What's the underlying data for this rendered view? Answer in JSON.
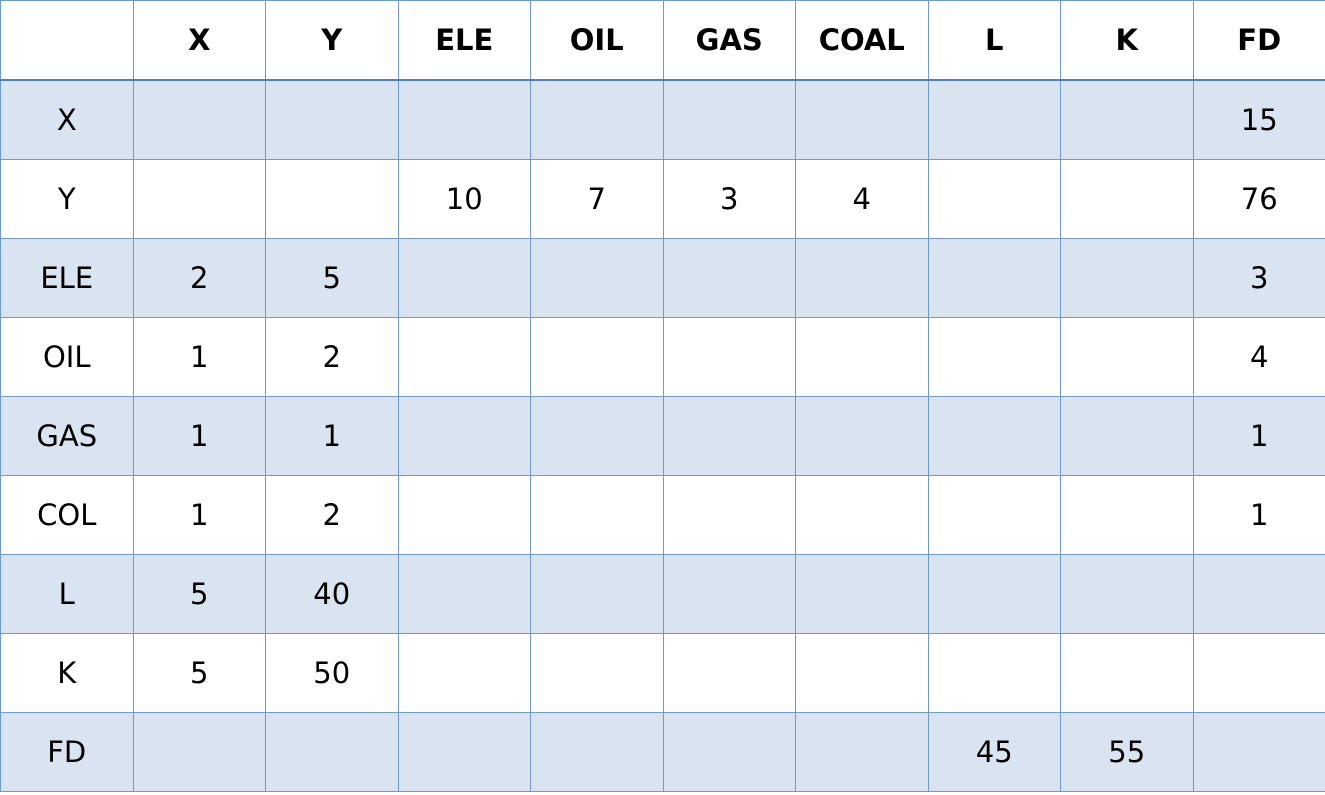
{
  "table": {
    "columns": [
      "",
      "X",
      "Y",
      "ELE",
      "OIL",
      "GAS",
      "COAL",
      "L",
      "K",
      "FD"
    ],
    "rows": [
      {
        "label": "X",
        "cells": [
          "",
          "",
          "",
          "",
          "",
          "",
          "",
          "",
          "15"
        ]
      },
      {
        "label": "Y",
        "cells": [
          "",
          "",
          "10",
          "7",
          "3",
          "4",
          "",
          "",
          "76"
        ]
      },
      {
        "label": "ELE",
        "cells": [
          "2",
          "5",
          "",
          "",
          "",
          "",
          "",
          "",
          "3"
        ]
      },
      {
        "label": "OIL",
        "cells": [
          "1",
          "2",
          "",
          "",
          "",
          "",
          "",
          "",
          "4"
        ]
      },
      {
        "label": "GAS",
        "cells": [
          "1",
          "1",
          "",
          "",
          "",
          "",
          "",
          "",
          "1"
        ]
      },
      {
        "label": "COL",
        "cells": [
          "1",
          "2",
          "",
          "",
          "",
          "",
          "",
          "",
          "1"
        ]
      },
      {
        "label": "L",
        "cells": [
          "5",
          "40",
          "",
          "",
          "",
          "",
          "",
          "",
          ""
        ]
      },
      {
        "label": "K",
        "cells": [
          "5",
          "50",
          "",
          "",
          "",
          "",
          "",
          "",
          ""
        ]
      },
      {
        "label": "FD",
        "cells": [
          "",
          "",
          "",
          "",
          "",
          "",
          "45",
          "55",
          ""
        ]
      }
    ]
  },
  "colors": {
    "grid": "#6f9ad0",
    "header_rule": "#4f7fc0",
    "band": "#dae4f1",
    "background": "#ffffff",
    "text": "#000000"
  }
}
